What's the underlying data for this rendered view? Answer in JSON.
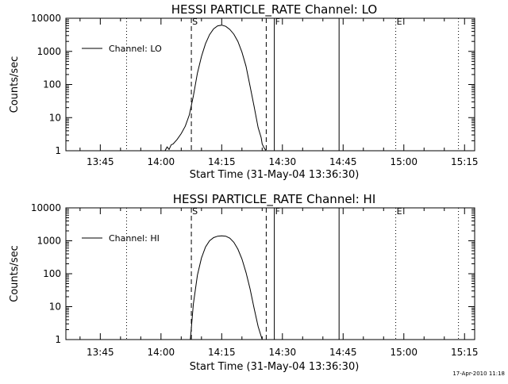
{
  "footer_timestamp": "17-Apr-2010 11:18",
  "chart_data": [
    {
      "type": "line",
      "title": "HESSI PARTICLE_RATE Channel: LO",
      "xlabel": "Start Time (31-May-04 13:36:30)",
      "ylabel": "Counts/sec",
      "y_scale": "log",
      "ylim": [
        1,
        10000
      ],
      "xlim": [
        "13:36:30",
        "15:17:30"
      ],
      "x_ticks": [
        "13:45",
        "14:00",
        "14:15",
        "14:30",
        "14:45",
        "15:00",
        "15:15"
      ],
      "y_ticks": [
        "1",
        "10",
        "100",
        "1000",
        "10000"
      ],
      "legend": {
        "position": "top-left",
        "entries": [
          "Channel: LO"
        ]
      },
      "series": [
        {
          "name": "Channel: LO",
          "x": [
            "14:01",
            "14:01:30",
            "14:02",
            "14:02:30",
            "14:03",
            "14:04",
            "14:05",
            "14:06",
            "14:07",
            "14:08",
            "14:09",
            "14:10",
            "14:11",
            "14:12",
            "14:13",
            "14:14",
            "14:15",
            "14:16",
            "14:17",
            "14:18",
            "14:19",
            "14:20",
            "14:21",
            "14:22",
            "14:23",
            "14:24",
            "14:24:45",
            "14:25",
            "14:25:30",
            "14:26"
          ],
          "y": [
            1,
            1.3,
            1.1,
            1.5,
            1.6,
            2.2,
            3.3,
            5.5,
            12,
            45,
            220,
            700,
            1700,
            3200,
            4800,
            5900,
            6200,
            5700,
            4600,
            3300,
            2000,
            950,
            360,
            90,
            22,
            5,
            2.5,
            1.6,
            1.2,
            1
          ]
        }
      ],
      "markers": [
        {
          "label": "S",
          "time": "14:07:30",
          "style": "dashed"
        },
        {
          "label": "",
          "time": "14:26",
          "style": "dashed"
        },
        {
          "label": "F",
          "time": "14:28",
          "style": "solid"
        },
        {
          "label": "",
          "time": "14:44",
          "style": "solid"
        },
        {
          "label": "E",
          "time": "14:58",
          "style": "dotted"
        },
        {
          "label": "",
          "time": "13:51:30",
          "style": "dotted"
        },
        {
          "label": "",
          "time": "15:13:30",
          "style": "dotted"
        }
      ]
    },
    {
      "type": "line",
      "title": "HESSI PARTICLE_RATE Channel: HI",
      "xlabel": "Start Time (31-May-04 13:36:30)",
      "ylabel": "Counts/sec",
      "y_scale": "log",
      "ylim": [
        1,
        10000
      ],
      "xlim": [
        "13:36:30",
        "15:17:30"
      ],
      "x_ticks": [
        "13:45",
        "14:00",
        "14:15",
        "14:30",
        "14:45",
        "15:00",
        "15:15"
      ],
      "y_ticks": [
        "1",
        "10",
        "100",
        "1000",
        "10000"
      ],
      "legend": {
        "position": "top-left",
        "entries": [
          "Channel: HI"
        ]
      },
      "series": [
        {
          "name": "Channel: HI",
          "x": [
            "14:07:15",
            "14:08",
            "14:09",
            "14:10",
            "14:11",
            "14:12",
            "14:13",
            "14:14",
            "14:15",
            "14:16",
            "14:17",
            "14:18",
            "14:19",
            "14:20",
            "14:21",
            "14:22",
            "14:23",
            "14:24",
            "14:25"
          ],
          "y": [
            1,
            12,
            90,
            300,
            650,
            1000,
            1250,
            1380,
            1420,
            1380,
            1200,
            900,
            560,
            280,
            110,
            35,
            9,
            2.5,
            1
          ]
        }
      ],
      "markers": [
        {
          "label": "S",
          "time": "14:07:30",
          "style": "dashed"
        },
        {
          "label": "",
          "time": "14:26",
          "style": "dashed"
        },
        {
          "label": "F",
          "time": "14:28",
          "style": "solid"
        },
        {
          "label": "",
          "time": "14:44",
          "style": "solid"
        },
        {
          "label": "E",
          "time": "14:58",
          "style": "dotted"
        },
        {
          "label": "",
          "time": "13:51:30",
          "style": "dotted"
        },
        {
          "label": "",
          "time": "15:13:30",
          "style": "dotted"
        }
      ]
    }
  ]
}
